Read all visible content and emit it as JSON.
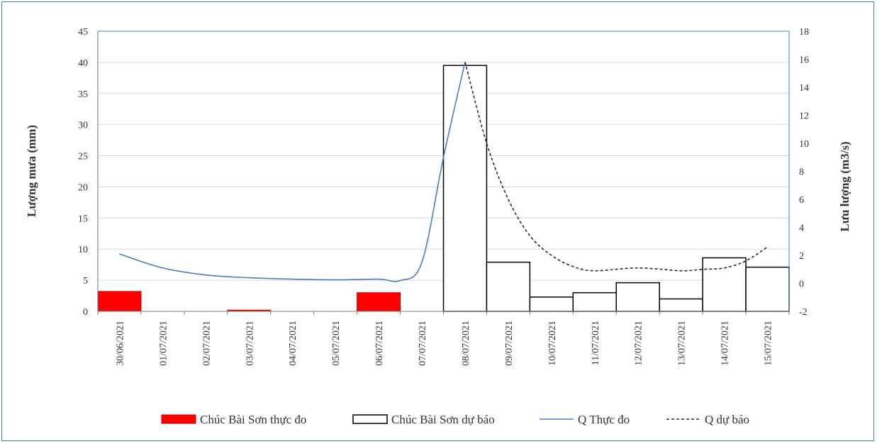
{
  "chart_data": {
    "type": "bar",
    "categories": [
      "30/06/2021",
      "01/07/2021",
      "02/07/2021",
      "03/07/2021",
      "04/07/2021",
      "05/07/2021",
      "06/07/2021",
      "07/07/2021",
      "08/07/2021",
      "09/07/2021",
      "10/07/2021",
      "11/07/2021",
      "12/07/2021",
      "13/07/2021",
      "14/07/2021",
      "15/07/2021"
    ],
    "ylabel_left": "Lượng mưa (mm)",
    "ylabel_right": "Lưu lượng (m3/s)",
    "ylim_left": [
      0,
      45
    ],
    "ylim_right": [
      -2,
      18
    ],
    "yticks_left": [
      0,
      5,
      10,
      15,
      20,
      25,
      30,
      35,
      40,
      45
    ],
    "yticks_right": [
      -2,
      0,
      2,
      4,
      6,
      8,
      10,
      12,
      14,
      16,
      18
    ],
    "grid": true,
    "legend_position": "bottom",
    "series": [
      {
        "name": "Chúc Bài Sơn thực đo",
        "kind": "bar",
        "axis": "left",
        "color": "#ff0000",
        "values": [
          3.2,
          0,
          0,
          0.2,
          0,
          0,
          3.0,
          0,
          null,
          null,
          null,
          null,
          null,
          null,
          null,
          null
        ]
      },
      {
        "name": "Chúc Bài Sơn dự báo",
        "kind": "bar",
        "axis": "left",
        "color": "#000000",
        "values": [
          null,
          null,
          null,
          null,
          null,
          null,
          null,
          null,
          39.5,
          7.9,
          2.3,
          3.0,
          4.6,
          2.0,
          8.6,
          7.1
        ]
      },
      {
        "name": "Q Thực đo",
        "kind": "line",
        "axis": "right",
        "color": "#4a7ebb",
        "x": [
          0,
          1,
          2,
          3,
          4,
          5,
          6,
          6.5,
          7,
          7.5,
          8
        ],
        "values": [
          2.1,
          1.1,
          0.6,
          0.4,
          0.3,
          0.25,
          0.3,
          0.2,
          1.5,
          9.0,
          15.8
        ]
      },
      {
        "name": "Q dự báo",
        "kind": "line",
        "axis": "right",
        "color": "#1f2d4d",
        "dashed": true,
        "x": [
          8,
          8.5,
          9,
          9.5,
          10,
          10.5,
          11,
          12,
          13,
          13.5,
          14,
          14.5,
          15
        ],
        "values": [
          15.8,
          10.0,
          6.0,
          3.4,
          2.0,
          1.2,
          0.9,
          1.1,
          0.9,
          1.0,
          1.1,
          1.6,
          2.6
        ]
      }
    ]
  }
}
